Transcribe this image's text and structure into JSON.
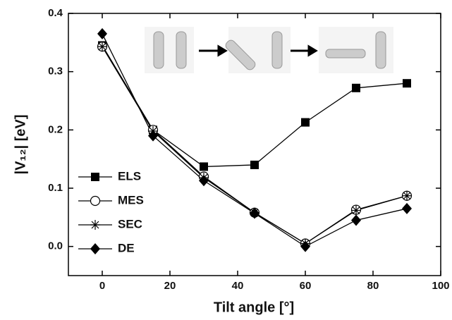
{
  "chart_data": {
    "type": "line",
    "x_label": "Tilt angle [°]",
    "y_label": "|V₁₂| [eV]",
    "x": [
      0,
      15,
      30,
      45,
      60,
      75,
      90
    ],
    "series": [
      {
        "name": "ELS",
        "color": "#000000",
        "marker": "square",
        "values": [
          0.345,
          0.2,
          0.137,
          0.14,
          0.213,
          0.272,
          0.28
        ]
      },
      {
        "name": "MES",
        "color": "#000000",
        "marker": "circle",
        "values": [
          0.343,
          0.2,
          0.12,
          0.058,
          0.005,
          0.063,
          0.087
        ]
      },
      {
        "name": "SEC",
        "color": "#000000",
        "marker": "star",
        "values": [
          0.343,
          0.198,
          0.118,
          0.058,
          0.005,
          0.062,
          0.087
        ]
      },
      {
        "name": "DE",
        "color": "#000000",
        "marker": "diamond",
        "values": [
          0.365,
          0.19,
          0.113,
          0.057,
          0,
          0.045,
          0.065
        ]
      }
    ],
    "xlim": [
      -10,
      100
    ],
    "xticks": [
      0,
      20,
      40,
      60,
      80,
      100
    ],
    "ylim": [
      -0.05,
      0.4
    ],
    "yticks": [
      {
        "value": 0,
        "label": "0.0"
      },
      0.1,
      0.2,
      0.3,
      0.4
    ],
    "legend": "lower-left"
  }
}
